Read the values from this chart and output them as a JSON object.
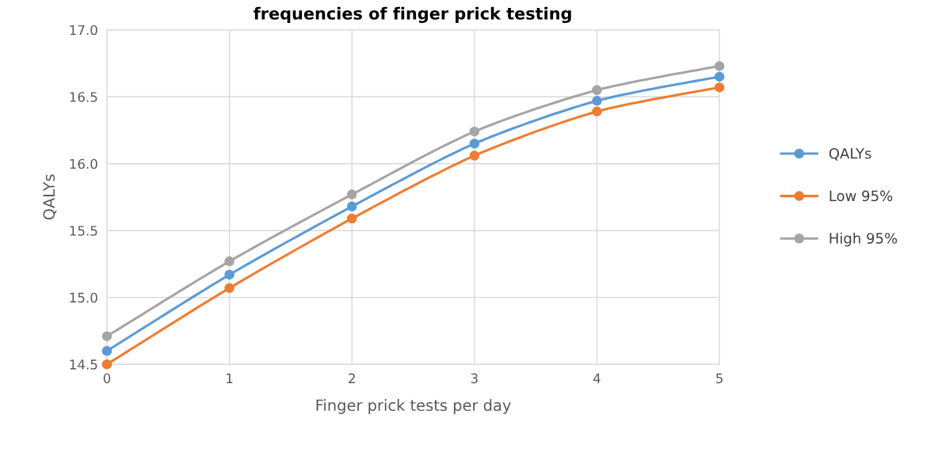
{
  "chart_data": {
    "type": "line",
    "title": "frequencies of finger prick testing",
    "xlabel": "Finger prick tests per day",
    "ylabel": "QALYs",
    "x": [
      0,
      1,
      2,
      3,
      4,
      5
    ],
    "series": [
      {
        "name": "QALYs",
        "color": "#5b9bd5",
        "values": [
          14.6,
          15.17,
          15.68,
          16.15,
          16.47,
          16.65
        ]
      },
      {
        "name": "Low 95%",
        "color": "#ed7d31",
        "values": [
          14.5,
          15.07,
          15.59,
          16.06,
          16.39,
          16.57
        ]
      },
      {
        "name": "High 95%",
        "color": "#a5a5a5",
        "values": [
          14.71,
          15.27,
          15.77,
          16.24,
          16.55,
          16.73
        ]
      }
    ],
    "xlim": [
      0,
      5
    ],
    "xticks": [
      0,
      1,
      2,
      3,
      4,
      5
    ],
    "ylim": [
      14.5,
      17.0
    ],
    "yticks": [
      {
        "value": 14.5,
        "label": "14.5"
      },
      {
        "value": 15.0,
        "label": "15.0"
      },
      {
        "value": 15.5,
        "label": "15.5"
      },
      {
        "value": 16.0,
        "label": "16.0"
      },
      {
        "value": 16.5,
        "label": "16.5"
      },
      {
        "value": 17.0,
        "label": "17.0"
      }
    ],
    "grid": true,
    "legend": "right",
    "marker": "circle",
    "line_style": "solid"
  }
}
